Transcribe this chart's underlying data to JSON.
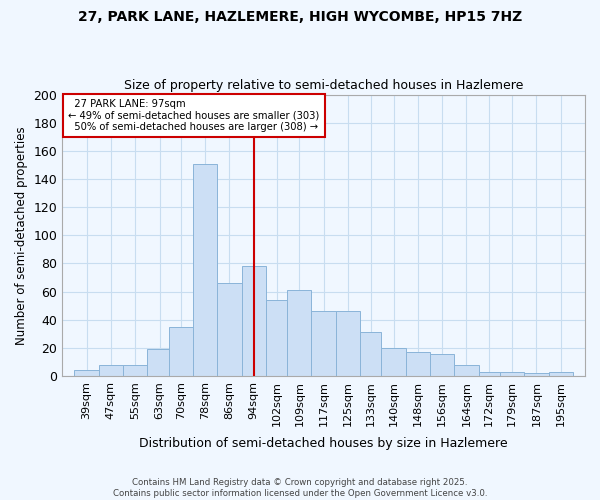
{
  "title": "27, PARK LANE, HAZLEMERE, HIGH WYCOMBE, HP15 7HZ",
  "subtitle": "Size of property relative to semi-detached houses in Hazlemere",
  "xlabel": "Distribution of semi-detached houses by size in Hazlemere",
  "ylabel": "Number of semi-detached properties",
  "bar_color": "#ccdff5",
  "bar_edge_color": "#8ab4d8",
  "grid_color": "#c8ddf0",
  "background_color": "#f0f7ff",
  "bin_labels": [
    "39sqm",
    "47sqm",
    "55sqm",
    "63sqm",
    "70sqm",
    "78sqm",
    "86sqm",
    "94sqm",
    "102sqm",
    "109sqm",
    "117sqm",
    "125sqm",
    "133sqm",
    "140sqm",
    "148sqm",
    "156sqm",
    "164sqm",
    "172sqm",
    "179sqm",
    "187sqm",
    "195sqm"
  ],
  "bin_left_edges": [
    35,
    43,
    51,
    59,
    66,
    74,
    82,
    90,
    98,
    105,
    113,
    121,
    129,
    136,
    144,
    152,
    160,
    168,
    175,
    183,
    191
  ],
  "bin_widths": [
    8,
    8,
    8,
    8,
    8,
    8,
    8,
    8,
    7,
    8,
    8,
    8,
    7,
    8,
    8,
    8,
    8,
    7,
    8,
    8,
    8
  ],
  "bar_heights": [
    4,
    8,
    8,
    19,
    35,
    151,
    66,
    78,
    54,
    61,
    46,
    46,
    31,
    20,
    17,
    16,
    8,
    3,
    3,
    2,
    3
  ],
  "property_size_x": 94,
  "property_label": "27 PARK LANE: 97sqm",
  "pct_smaller": 49,
  "count_smaller": 303,
  "pct_larger": 50,
  "count_larger": 308,
  "annotation_box_color": "#ffffff",
  "annotation_box_edge": "#cc0000",
  "vline_color": "#cc0000",
  "ylim": [
    0,
    200
  ],
  "xlim": [
    31,
    203
  ],
  "yticks": [
    0,
    20,
    40,
    60,
    80,
    100,
    120,
    140,
    160,
    180,
    200
  ],
  "footer_line1": "Contains HM Land Registry data © Crown copyright and database right 2025.",
  "footer_line2": "Contains public sector information licensed under the Open Government Licence v3.0."
}
